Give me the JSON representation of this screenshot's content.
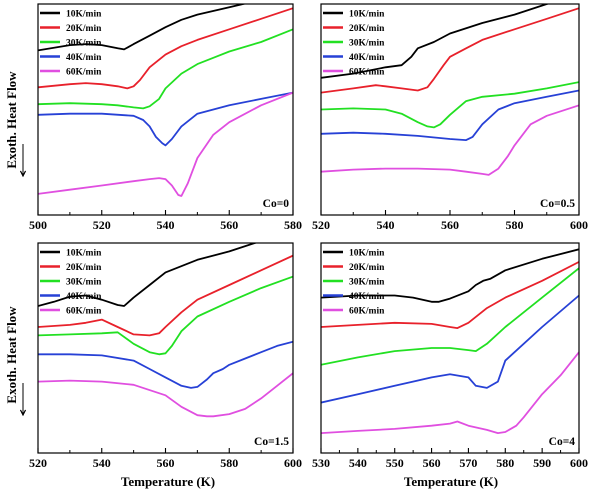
{
  "figure": {
    "y_axis_label": "Exoth.  Heat Flow",
    "x_axis_label": "Temperature (K)"
  },
  "colors": {
    "10K/min": "#000000",
    "20K/min": "#e8212b",
    "30K/min": "#22e022",
    "40K/min": "#2741d6",
    "60K/min": "#e04fe0"
  },
  "chart_data": [
    {
      "type": "line",
      "panel_label": "Co=0",
      "xlim": [
        500,
        580
      ],
      "xticks": [
        500,
        520,
        540,
        560,
        580
      ],
      "ylim": [
        0,
        100
      ],
      "series": [
        {
          "name": "10K/min",
          "x": [
            500,
            510,
            515,
            520,
            525,
            527,
            530,
            535,
            540,
            545,
            550,
            560,
            570,
            580
          ],
          "y": [
            78,
            80.5,
            81,
            80.5,
            79,
            78.5,
            81,
            85,
            89,
            92.5,
            95,
            98.5,
            102,
            106
          ]
        },
        {
          "name": "20K/min",
          "x": [
            500,
            510,
            515,
            520,
            525,
            528,
            530,
            532,
            535,
            540,
            545,
            550,
            560,
            570,
            580
          ],
          "y": [
            60.5,
            62,
            62.5,
            62,
            61,
            60,
            61,
            64,
            70,
            76,
            80,
            83,
            88,
            93,
            98
          ]
        },
        {
          "name": "30K/min",
          "x": [
            500,
            510,
            520,
            525,
            530,
            533,
            535,
            538,
            540,
            545,
            550,
            555,
            560,
            570,
            580
          ],
          "y": [
            52.5,
            53,
            52.5,
            52,
            51,
            50.5,
            51.5,
            55,
            60,
            67,
            71.5,
            74.5,
            77.5,
            82,
            88
          ]
        },
        {
          "name": "40K/min",
          "x": [
            500,
            510,
            520,
            530,
            533,
            535,
            537,
            539,
            540,
            542,
            545,
            550,
            560,
            570,
            580
          ],
          "y": [
            47.5,
            48,
            48,
            47,
            45,
            42,
            37,
            34,
            33,
            36,
            42,
            48,
            52,
            55,
            58
          ]
        },
        {
          "name": "60K/min",
          "x": [
            500,
            510,
            520,
            530,
            535,
            538,
            540,
            542,
            544,
            545,
            547,
            550,
            555,
            560,
            570,
            580
          ],
          "y": [
            10,
            12,
            14,
            16,
            17,
            17.5,
            17,
            14,
            9.5,
            9,
            15,
            27,
            38,
            44,
            52,
            58
          ]
        }
      ],
      "legend": [
        "10K/min",
        "20K/min",
        "30K/min",
        "40K/min",
        "60K/min"
      ]
    },
    {
      "type": "line",
      "panel_label": "Co=0.5",
      "xlim": [
        520,
        600
      ],
      "xticks": [
        520,
        540,
        560,
        580,
        600
      ],
      "ylim": [
        0,
        100
      ],
      "series": [
        {
          "name": "10K/min",
          "x": [
            520,
            530,
            540,
            545,
            548,
            550,
            555,
            560,
            570,
            580,
            590,
            600
          ],
          "y": [
            65,
            67,
            70,
            71,
            75,
            79,
            82,
            86,
            91,
            95,
            100,
            105
          ]
        },
        {
          "name": "20K/min",
          "x": [
            520,
            530,
            537,
            540,
            545,
            550,
            553,
            555,
            558,
            560,
            565,
            570,
            580,
            590,
            600
          ],
          "y": [
            58,
            60,
            61.5,
            61,
            60,
            59,
            60.5,
            64.5,
            71,
            75,
            79,
            83,
            88,
            93,
            98
          ]
        },
        {
          "name": "30K/min",
          "x": [
            520,
            530,
            540,
            545,
            550,
            553,
            555,
            557,
            560,
            565,
            570,
            580,
            590,
            600
          ],
          "y": [
            50,
            50.5,
            50,
            48,
            44,
            42,
            41.5,
            43,
            47.5,
            54,
            56,
            57.5,
            60,
            63
          ]
        },
        {
          "name": "40K/min",
          "x": [
            520,
            530,
            540,
            550,
            560,
            565,
            567,
            570,
            575,
            580,
            590,
            600
          ],
          "y": [
            38.5,
            39,
            38.5,
            37.5,
            36,
            35.5,
            37,
            43,
            50,
            53,
            56,
            59
          ]
        },
        {
          "name": "60K/min",
          "x": [
            520,
            530,
            540,
            550,
            560,
            565,
            570,
            572,
            575,
            578,
            580,
            585,
            590,
            600
          ],
          "y": [
            20.5,
            21.5,
            22,
            22,
            21.5,
            20.5,
            19.5,
            19,
            22,
            28,
            33,
            43,
            47,
            52
          ]
        }
      ],
      "legend": [
        "10K/min",
        "20K/min",
        "30K/min",
        "40K/min",
        "60K/min"
      ]
    },
    {
      "type": "line",
      "panel_label": "Co=1.5",
      "xlim": [
        520,
        600
      ],
      "xticks": [
        520,
        540,
        560,
        580,
        600
      ],
      "ylim": [
        0,
        100
      ],
      "series": [
        {
          "name": "10K/min",
          "x": [
            520,
            525,
            530,
            535,
            540,
            545,
            547,
            550,
            555,
            560,
            570,
            580,
            590,
            600
          ],
          "y": [
            70,
            72,
            74.5,
            75,
            73,
            70.5,
            70,
            74,
            80,
            86,
            92,
            96,
            101,
            105
          ]
        },
        {
          "name": "20K/min",
          "x": [
            520,
            530,
            535,
            540,
            545,
            550,
            555,
            558,
            560,
            565,
            570,
            580,
            590,
            600
          ],
          "y": [
            60,
            61,
            62,
            63.5,
            60,
            56.5,
            56,
            57,
            60,
            67,
            73,
            80,
            87,
            94
          ]
        },
        {
          "name": "30K/min",
          "x": [
            520,
            530,
            540,
            545,
            550,
            555,
            558,
            560,
            562,
            565,
            570,
            580,
            590,
            600
          ],
          "y": [
            56,
            56.5,
            57,
            57.5,
            52,
            48,
            47,
            47.5,
            51,
            58,
            65,
            72,
            78.5,
            84
          ]
        },
        {
          "name": "40K/min",
          "x": [
            520,
            530,
            540,
            550,
            555,
            560,
            565,
            568,
            570,
            573,
            575,
            578,
            580,
            585,
            590,
            595,
            600
          ],
          "y": [
            47,
            47,
            46.5,
            44,
            40,
            36,
            32,
            31,
            31.5,
            35,
            38,
            40,
            42,
            45,
            48,
            51,
            53
          ]
        },
        {
          "name": "60K/min",
          "x": [
            520,
            530,
            540,
            550,
            560,
            565,
            570,
            573,
            575,
            580,
            585,
            590,
            595,
            600
          ],
          "y": [
            34,
            34.5,
            34,
            32.5,
            27.5,
            22,
            18,
            17.5,
            17.5,
            18.5,
            21,
            26,
            32,
            38
          ]
        }
      ],
      "legend": [
        "10K/min",
        "20K/min",
        "30K/min",
        "40K/min",
        "60K/min"
      ]
    },
    {
      "type": "line",
      "panel_label": "Co=4",
      "xlim": [
        530,
        600
      ],
      "xticks": [
        530,
        540,
        550,
        560,
        570,
        580,
        590,
        600
      ],
      "ylim": [
        0,
        100
      ],
      "series": [
        {
          "name": "10K/min",
          "x": [
            530,
            540,
            550,
            555,
            560,
            562,
            565,
            570,
            572,
            574,
            576,
            580,
            590,
            600
          ],
          "y": [
            74,
            75,
            75,
            74,
            72,
            72,
            73.5,
            77,
            80,
            82,
            83,
            87,
            92.5,
            97
          ]
        },
        {
          "name": "20K/min",
          "x": [
            530,
            540,
            550,
            560,
            565,
            567,
            570,
            575,
            580,
            590,
            600
          ],
          "y": [
            60,
            61,
            62,
            61.5,
            60,
            59.5,
            62,
            69,
            74,
            82,
            91
          ]
        },
        {
          "name": "30K/min",
          "x": [
            530,
            540,
            550,
            560,
            565,
            570,
            572,
            575,
            580,
            590,
            600
          ],
          "y": [
            42,
            45.5,
            48.5,
            50,
            50,
            49,
            48.5,
            52,
            60,
            74,
            88
          ]
        },
        {
          "name": "40K/min",
          "x": [
            530,
            540,
            550,
            560,
            565,
            570,
            572,
            575,
            578,
            580,
            590,
            600
          ],
          "y": [
            24,
            28,
            32,
            36,
            37.5,
            36,
            32,
            31,
            34,
            44,
            60,
            75
          ]
        },
        {
          "name": "60K/min",
          "x": [
            530,
            540,
            550,
            560,
            565,
            567,
            570,
            575,
            578,
            580,
            583,
            585,
            590,
            595,
            600
          ],
          "y": [
            9.5,
            10.5,
            11.5,
            13,
            14,
            15,
            13,
            11,
            9.5,
            10,
            13,
            17,
            28,
            37,
            48
          ]
        }
      ],
      "legend": [
        "10K/min",
        "20K/min",
        "30K/min",
        "40K/min",
        "60K/min"
      ]
    }
  ]
}
